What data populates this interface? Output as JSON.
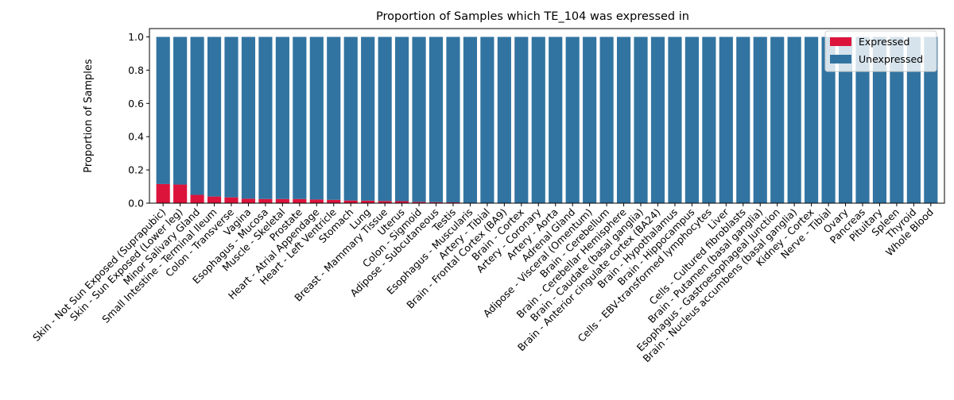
{
  "chart_data": {
    "type": "bar",
    "stacked": true,
    "title": "Proportion of Samples which TE_104 was expressed in",
    "xlabel": "",
    "ylabel": "Proportion of Samples",
    "ylim": [
      0,
      1.05
    ],
    "yticks": [
      "0.0",
      "0.2",
      "0.4",
      "0.6",
      "0.8",
      "1.0"
    ],
    "grid": false,
    "legend_position": "top-right",
    "categories": [
      "Skin - Not Sun Exposed (Suprapubic)",
      "Skin - Sun Exposed (Lower leg)",
      "Minor Salivary Gland",
      "Small Intestine - Terminal Ileum",
      "Colon - Transverse",
      "Vagina",
      "Esophagus - Mucosa",
      "Muscle - Skeletal",
      "Prostate",
      "Heart - Atrial Appendage",
      "Heart - Left Ventricle",
      "Stomach",
      "Lung",
      "Breast - Mammary Tissue",
      "Uterus",
      "Colon - Sigmoid",
      "Adipose - Subcutaneous",
      "Testis",
      "Esophagus - Muscularis",
      "Artery - Tibial",
      "Brain - Frontal Cortex (BA9)",
      "Brain - Cortex",
      "Artery - Coronary",
      "Artery - Aorta",
      "Adrenal Gland",
      "Adipose - Visceral (Omentum)",
      "Brain - Cerebellum",
      "Brain - Cerebellar Hemisphere",
      "Brain - Caudate (basal ganglia)",
      "Brain - Anterior cingulate cortex (BA24)",
      "Brain - Hypothalamus",
      "Brain - Hippocampus",
      "Cells - EBV-transformed lymphocytes",
      "Liver",
      "Cells - Cultured fibroblasts",
      "Brain - Putamen (basal ganglia)",
      "Esophagus - Gastroesophageal Junction",
      "Brain - Nucleus accumbens (basal ganglia)",
      "Kidney - Cortex",
      "Nerve - Tibial",
      "Ovary",
      "Pancreas",
      "Pituitary",
      "Spleen",
      "Thyroid",
      "Whole Blood"
    ],
    "series": [
      {
        "name": "Expressed",
        "color": "#dc143c",
        "values": [
          0.115,
          0.112,
          0.05,
          0.04,
          0.035,
          0.027,
          0.025,
          0.025,
          0.025,
          0.022,
          0.02,
          0.016,
          0.015,
          0.013,
          0.012,
          0.008,
          0.006,
          0.005,
          0.0,
          0.0,
          0.0,
          0.0,
          0.0,
          0.0,
          0.0,
          0.0,
          0.0,
          0.0,
          0.0,
          0.0,
          0.0,
          0.0,
          0.0,
          0.0,
          0.0,
          0.0,
          0.0,
          0.0,
          0.0,
          0.0,
          0.0,
          0.0,
          0.0,
          0.0,
          0.0,
          0.0
        ]
      },
      {
        "name": "Unexpressed",
        "color": "#3274a1",
        "values": [
          0.885,
          0.888,
          0.95,
          0.96,
          0.965,
          0.973,
          0.975,
          0.975,
          0.975,
          0.978,
          0.98,
          0.984,
          0.985,
          0.987,
          0.988,
          0.992,
          0.994,
          0.995,
          1.0,
          1.0,
          1.0,
          1.0,
          1.0,
          1.0,
          1.0,
          1.0,
          1.0,
          1.0,
          1.0,
          1.0,
          1.0,
          1.0,
          1.0,
          1.0,
          1.0,
          1.0,
          1.0,
          1.0,
          1.0,
          1.0,
          1.0,
          1.0,
          1.0,
          1.0,
          1.0,
          1.0
        ]
      }
    ]
  }
}
